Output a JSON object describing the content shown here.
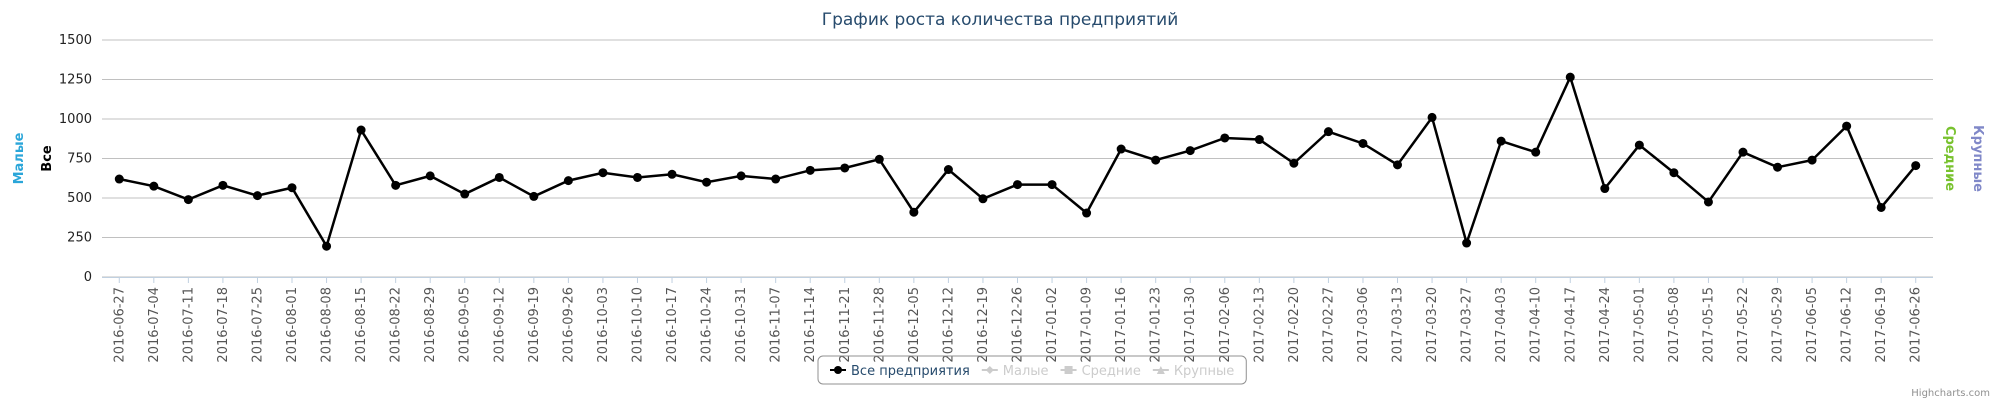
{
  "chart_data": {
    "type": "line",
    "title": "График роста количества предприятий",
    "y_axis_titles": [
      {
        "text": "Малые",
        "color": "#2ba6d9",
        "side": "left"
      },
      {
        "text": "Все",
        "color": "#000000",
        "side": "left"
      },
      {
        "text": "Средние",
        "color": "#78c22e",
        "side": "right"
      },
      {
        "text": "Крупные",
        "color": "#8088c8",
        "side": "right"
      }
    ],
    "categories": [
      "2016-06-27",
      "2016-07-04",
      "2016-07-11",
      "2016-07-18",
      "2016-07-25",
      "2016-08-01",
      "2016-08-08",
      "2016-08-15",
      "2016-08-22",
      "2016-08-29",
      "2016-09-05",
      "2016-09-12",
      "2016-09-19",
      "2016-09-26",
      "2016-10-03",
      "2016-10-10",
      "2016-10-17",
      "2016-10-24",
      "2016-10-31",
      "2016-11-07",
      "2016-11-14",
      "2016-11-21",
      "2016-11-28",
      "2016-12-05",
      "2016-12-12",
      "2016-12-19",
      "2016-12-26",
      "2017-01-02",
      "2017-01-09",
      "2017-01-16",
      "2017-01-23",
      "2017-01-30",
      "2017-02-06",
      "2017-02-13",
      "2017-02-20",
      "2017-02-27",
      "2017-03-06",
      "2017-03-13",
      "2017-03-20",
      "2017-03-27",
      "2017-04-03",
      "2017-04-10",
      "2017-04-17",
      "2017-04-24",
      "2017-05-01",
      "2017-05-08",
      "2017-05-15",
      "2017-05-22",
      "2017-05-29",
      "2017-06-05",
      "2017-06-12",
      "2017-06-19",
      "2017-06-26"
    ],
    "series": [
      {
        "name": "Все предприятия",
        "color": "#000000",
        "marker": "circle",
        "visible": true,
        "values": [
          620,
          575,
          490,
          580,
          515,
          565,
          195,
          930,
          580,
          640,
          525,
          630,
          510,
          610,
          660,
          630,
          650,
          600,
          640,
          620,
          675,
          690,
          745,
          410,
          680,
          495,
          585,
          585,
          405,
          810,
          740,
          800,
          880,
          870,
          720,
          920,
          845,
          710,
          1010,
          215,
          860,
          790,
          1265,
          560,
          835,
          660,
          475,
          790,
          695,
          740,
          955,
          440,
          705
        ]
      },
      {
        "name": "Малые",
        "color": "#cccccc",
        "marker": "diamond",
        "visible": false
      },
      {
        "name": "Средние",
        "color": "#cccccc",
        "marker": "square",
        "visible": false
      },
      {
        "name": "Крупные",
        "color": "#cccccc",
        "marker": "triangle",
        "visible": false
      }
    ],
    "ylim": [
      0,
      1500
    ],
    "yticks": [
      0,
      250,
      500,
      750,
      1000,
      1250,
      1500
    ],
    "grid": true,
    "legend": "bottom",
    "credits": "Highcharts.com"
  }
}
